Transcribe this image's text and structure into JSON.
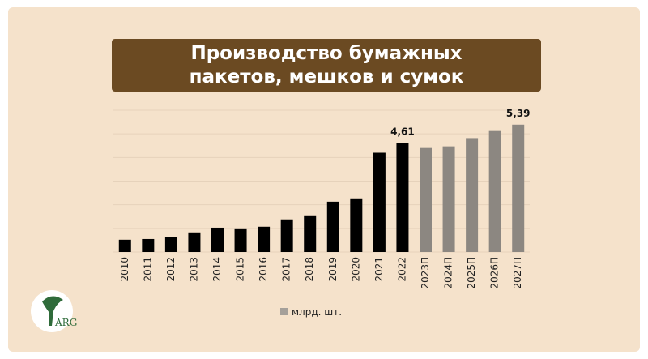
{
  "chart_data": {
    "type": "bar",
    "title": "Производство бумажных пакетов, мешков и сумок",
    "categories": [
      "2010",
      "2011",
      "2012",
      "2013",
      "2014",
      "2015",
      "2016",
      "2017",
      "2018",
      "2019",
      "2020",
      "2021",
      "2022",
      "2023П",
      "2024П",
      "2025П",
      "2026П",
      "2027П"
    ],
    "values": [
      0.52,
      0.55,
      0.62,
      0.83,
      1.03,
      1.0,
      1.07,
      1.38,
      1.55,
      2.13,
      2.27,
      4.2,
      4.61,
      4.4,
      4.47,
      4.82,
      5.12,
      5.39
    ],
    "value_labels": [
      null,
      null,
      null,
      null,
      null,
      null,
      null,
      null,
      null,
      null,
      null,
      null,
      "4,61",
      null,
      null,
      null,
      null,
      "5,39"
    ],
    "colors": [
      "#000000",
      "#000000",
      "#000000",
      "#000000",
      "#000000",
      "#000000",
      "#000000",
      "#000000",
      "#000000",
      "#000000",
      "#000000",
      "#000000",
      "#000000",
      "#8c8781",
      "#8c8781",
      "#8c8781",
      "#8c8781",
      "#8c8781"
    ],
    "legend": {
      "name": "млрд. шт.",
      "color": "#a5a09a"
    },
    "ylim": [
      0,
      6
    ],
    "yticks": [
      0,
      1,
      2,
      3,
      4,
      5,
      6
    ],
    "grid": true,
    "tick_labels": false
  },
  "logo": "ARG"
}
